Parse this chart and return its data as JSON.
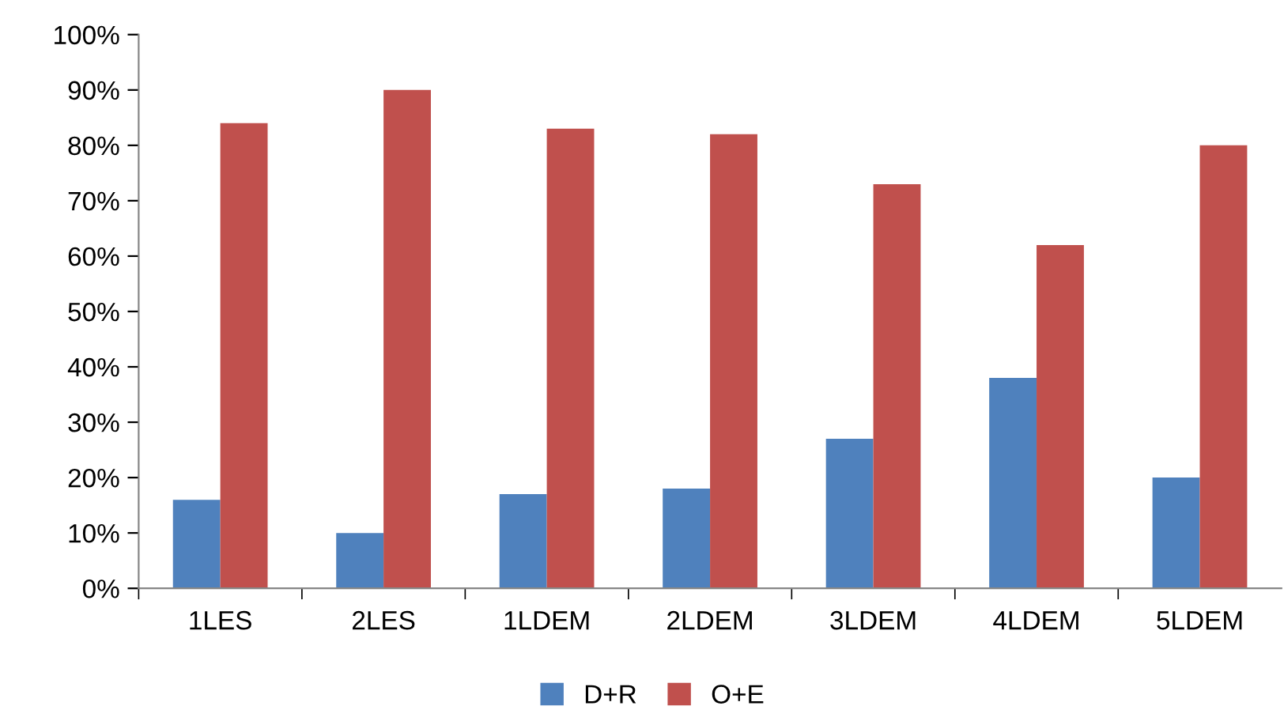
{
  "chart_data": {
    "type": "bar",
    "categories": [
      "1LES",
      "2LES",
      "1LDEM",
      "2LDEM",
      "3LDEM",
      "4LDEM",
      "5LDEM"
    ],
    "series": [
      {
        "name": "D+R",
        "color": "#4f81bd",
        "values": [
          16,
          10,
          17,
          18,
          27,
          38,
          20
        ]
      },
      {
        "name": "O+E",
        "color": "#c0504d",
        "values": [
          84,
          90,
          83,
          82,
          73,
          62,
          80
        ]
      }
    ],
    "ylim": [
      0,
      100
    ],
    "yticks": [
      {
        "value": 0,
        "label": "0%"
      },
      {
        "value": 10,
        "label": "10%"
      },
      {
        "value": 20,
        "label": "20%"
      },
      {
        "value": 30,
        "label": "30%"
      },
      {
        "value": 40,
        "label": "40%"
      },
      {
        "value": 50,
        "label": "50%"
      },
      {
        "value": 60,
        "label": "60%"
      },
      {
        "value": 70,
        "label": "70%"
      },
      {
        "value": 80,
        "label": "80%"
      },
      {
        "value": 90,
        "label": "90%"
      },
      {
        "value": 100,
        "label": "100%"
      }
    ],
    "grid": false,
    "legend": "bottom"
  }
}
